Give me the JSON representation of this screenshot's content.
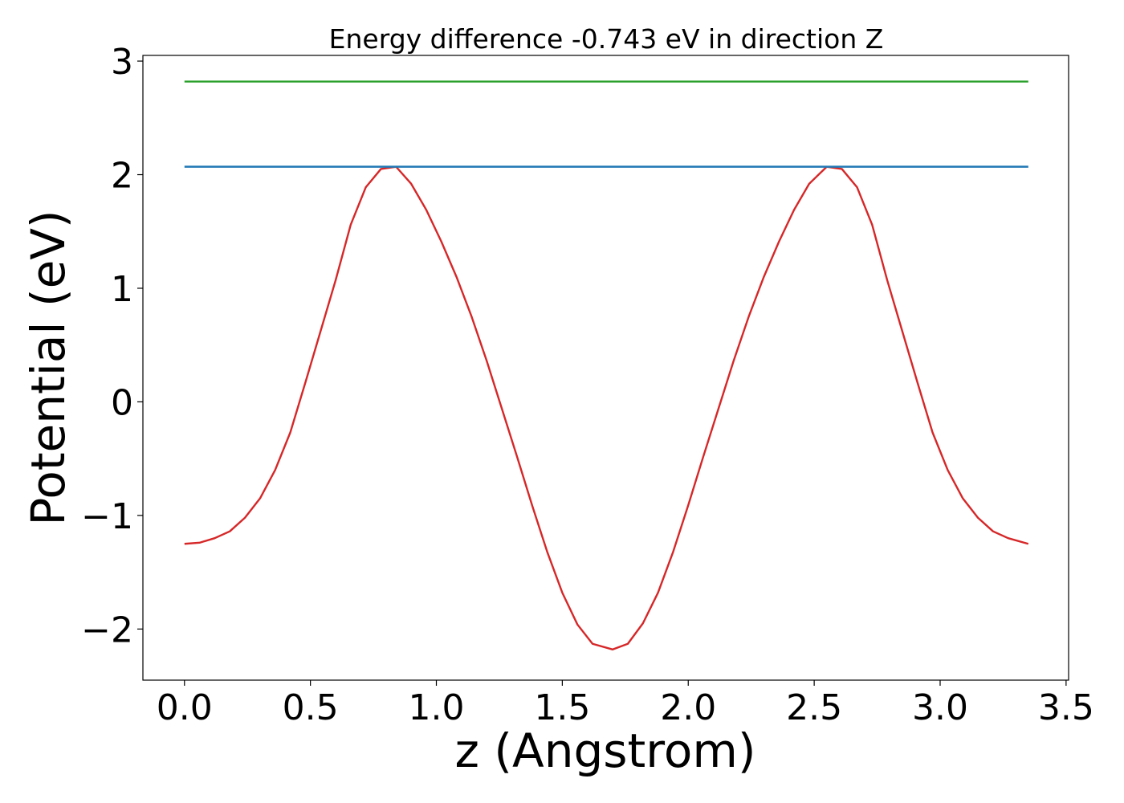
{
  "chart_data": {
    "type": "line",
    "title": "Energy difference -0.743 eV in direction Z",
    "xlabel": "z (Angstrom)",
    "ylabel": "Potential (eV)",
    "xlim": [
      -0.165,
      3.51
    ],
    "ylim": [
      -2.45,
      3.05
    ],
    "xticks": [
      0.0,
      0.5,
      1.0,
      1.5,
      2.0,
      2.5,
      3.0,
      3.5
    ],
    "xtick_labels": [
      "0.0",
      "0.5",
      "1.0",
      "1.5",
      "2.0",
      "2.5",
      "3.0",
      "3.5"
    ],
    "yticks": [
      -2,
      -1,
      0,
      1,
      2,
      3
    ],
    "ytick_labels": [
      "−2",
      "−1",
      "0",
      "1",
      "2",
      "3"
    ],
    "grid": false,
    "legend": "none",
    "series": [
      {
        "color": "#d62728",
        "x": [
          0.0,
          0.06,
          0.12,
          0.18,
          0.24,
          0.3,
          0.36,
          0.42,
          0.48,
          0.54,
          0.6,
          0.66,
          0.72,
          0.78,
          0.84,
          0.9,
          0.96,
          1.02,
          1.08,
          1.14,
          1.2,
          1.26,
          1.32,
          1.38,
          1.44,
          1.5,
          1.56,
          1.62,
          1.7,
          1.76,
          1.82,
          1.88,
          1.94,
          2.0,
          2.06,
          2.12,
          2.18,
          2.24,
          2.3,
          2.36,
          2.42,
          2.48,
          2.55,
          2.61,
          2.67,
          2.73,
          2.79,
          2.85,
          2.91,
          2.97,
          3.03,
          3.09,
          3.15,
          3.21,
          3.27,
          3.35
        ],
        "y": [
          -1.25,
          -1.24,
          -1.2,
          -1.14,
          -1.02,
          -0.85,
          -0.6,
          -0.27,
          0.17,
          0.62,
          1.07,
          1.56,
          1.89,
          2.05,
          2.07,
          1.92,
          1.69,
          1.41,
          1.1,
          0.75,
          0.36,
          -0.06,
          -0.48,
          -0.91,
          -1.32,
          -1.68,
          -1.96,
          -2.13,
          -2.18,
          -2.13,
          -1.95,
          -1.68,
          -1.32,
          -0.91,
          -0.48,
          -0.06,
          0.36,
          0.75,
          1.1,
          1.41,
          1.69,
          1.92,
          2.07,
          2.05,
          1.89,
          1.56,
          1.07,
          0.62,
          0.17,
          -0.27,
          -0.6,
          -0.85,
          -1.02,
          -1.14,
          -1.2,
          -1.25
        ]
      },
      {
        "color": "#1f77b4",
        "x": [
          0.0,
          3.35
        ],
        "y": [
          2.07,
          2.07
        ]
      },
      {
        "color": "#2ca02c",
        "x": [
          0.0,
          3.35
        ],
        "y": [
          2.82,
          2.82
        ]
      }
    ]
  }
}
